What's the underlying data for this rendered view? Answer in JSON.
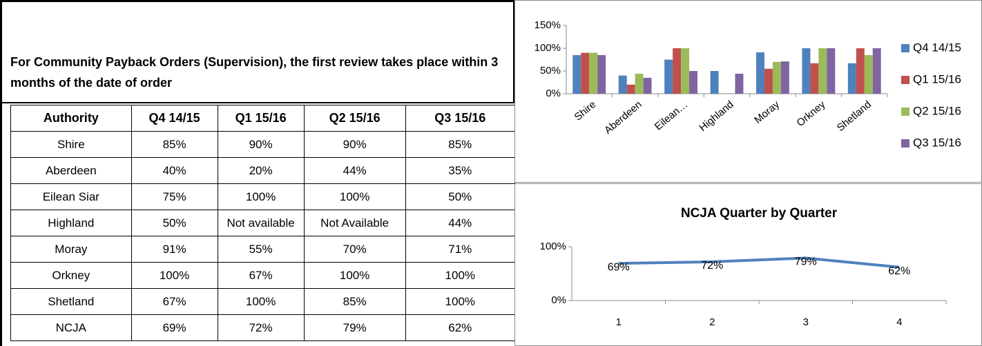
{
  "header": {
    "title": "For Community Payback Orders (Supervision), the first review takes place within 3 months of the date of order"
  },
  "table": {
    "columns": [
      "Authority",
      "Q4 14/15",
      "Q1 15/16",
      "Q2 15/16",
      "Q3 15/16"
    ],
    "rows": [
      [
        "Shire",
        "85%",
        "90%",
        "90%",
        "85%"
      ],
      [
        "Aberdeen",
        "40%",
        "20%",
        "44%",
        "35%"
      ],
      [
        "Eilean Siar",
        "75%",
        "100%",
        "100%",
        "50%"
      ],
      [
        "Highland",
        "50%",
        "Not available",
        "Not Available",
        "44%"
      ],
      [
        "Moray",
        "91%",
        "55%",
        "70%",
        "71%"
      ],
      [
        "Orkney",
        "100%",
        "67%",
        "100%",
        "100%"
      ],
      [
        "Shetland",
        "67%",
        "100%",
        "85%",
        "100%"
      ],
      [
        "NCJA",
        "69%",
        "72%",
        "79%",
        "62%"
      ]
    ]
  },
  "chart_data": [
    {
      "type": "bar",
      "categories": [
        "Shire",
        "Aberdeen",
        "Eilean…",
        "Highland",
        "Moray",
        "Orkney",
        "Shetland"
      ],
      "series": [
        {
          "name": "Q4 14/15",
          "color": "#4f81bd",
          "values": [
            85,
            40,
            75,
            50,
            91,
            100,
            67
          ]
        },
        {
          "name": "Q1 15/16",
          "color": "#c0504d",
          "values": [
            90,
            20,
            100,
            null,
            55,
            67,
            100
          ]
        },
        {
          "name": "Q2 15/16",
          "color": "#9bbb59",
          "values": [
            90,
            44,
            100,
            null,
            70,
            100,
            85
          ]
        },
        {
          "name": "Q3 15/16",
          "color": "#8064a2",
          "values": [
            85,
            35,
            50,
            44,
            71,
            100,
            100
          ]
        }
      ],
      "ylim": [
        0,
        150
      ],
      "yticks": [
        {
          "value": 0,
          "label": "0%"
        },
        {
          "value": 50,
          "label": "50%"
        },
        {
          "value": 100,
          "label": "100%"
        },
        {
          "value": 150,
          "label": "150%"
        }
      ],
      "grid": false,
      "legend": "right"
    },
    {
      "type": "line",
      "title": "NCJA Quarter by Quarter",
      "categories": [
        "1",
        "2",
        "3",
        "4"
      ],
      "series": [
        {
          "name": "NCJA",
          "color": "#4f81bd",
          "values": [
            69,
            72,
            79,
            62
          ],
          "value_labels": [
            "69%",
            "72%",
            "79%",
            "62%"
          ]
        }
      ],
      "ylim": [
        0,
        100
      ],
      "yticks": [
        {
          "value": 0,
          "label": "0%"
        },
        {
          "value": 100,
          "label": "100%"
        }
      ],
      "grid": false
    }
  ]
}
